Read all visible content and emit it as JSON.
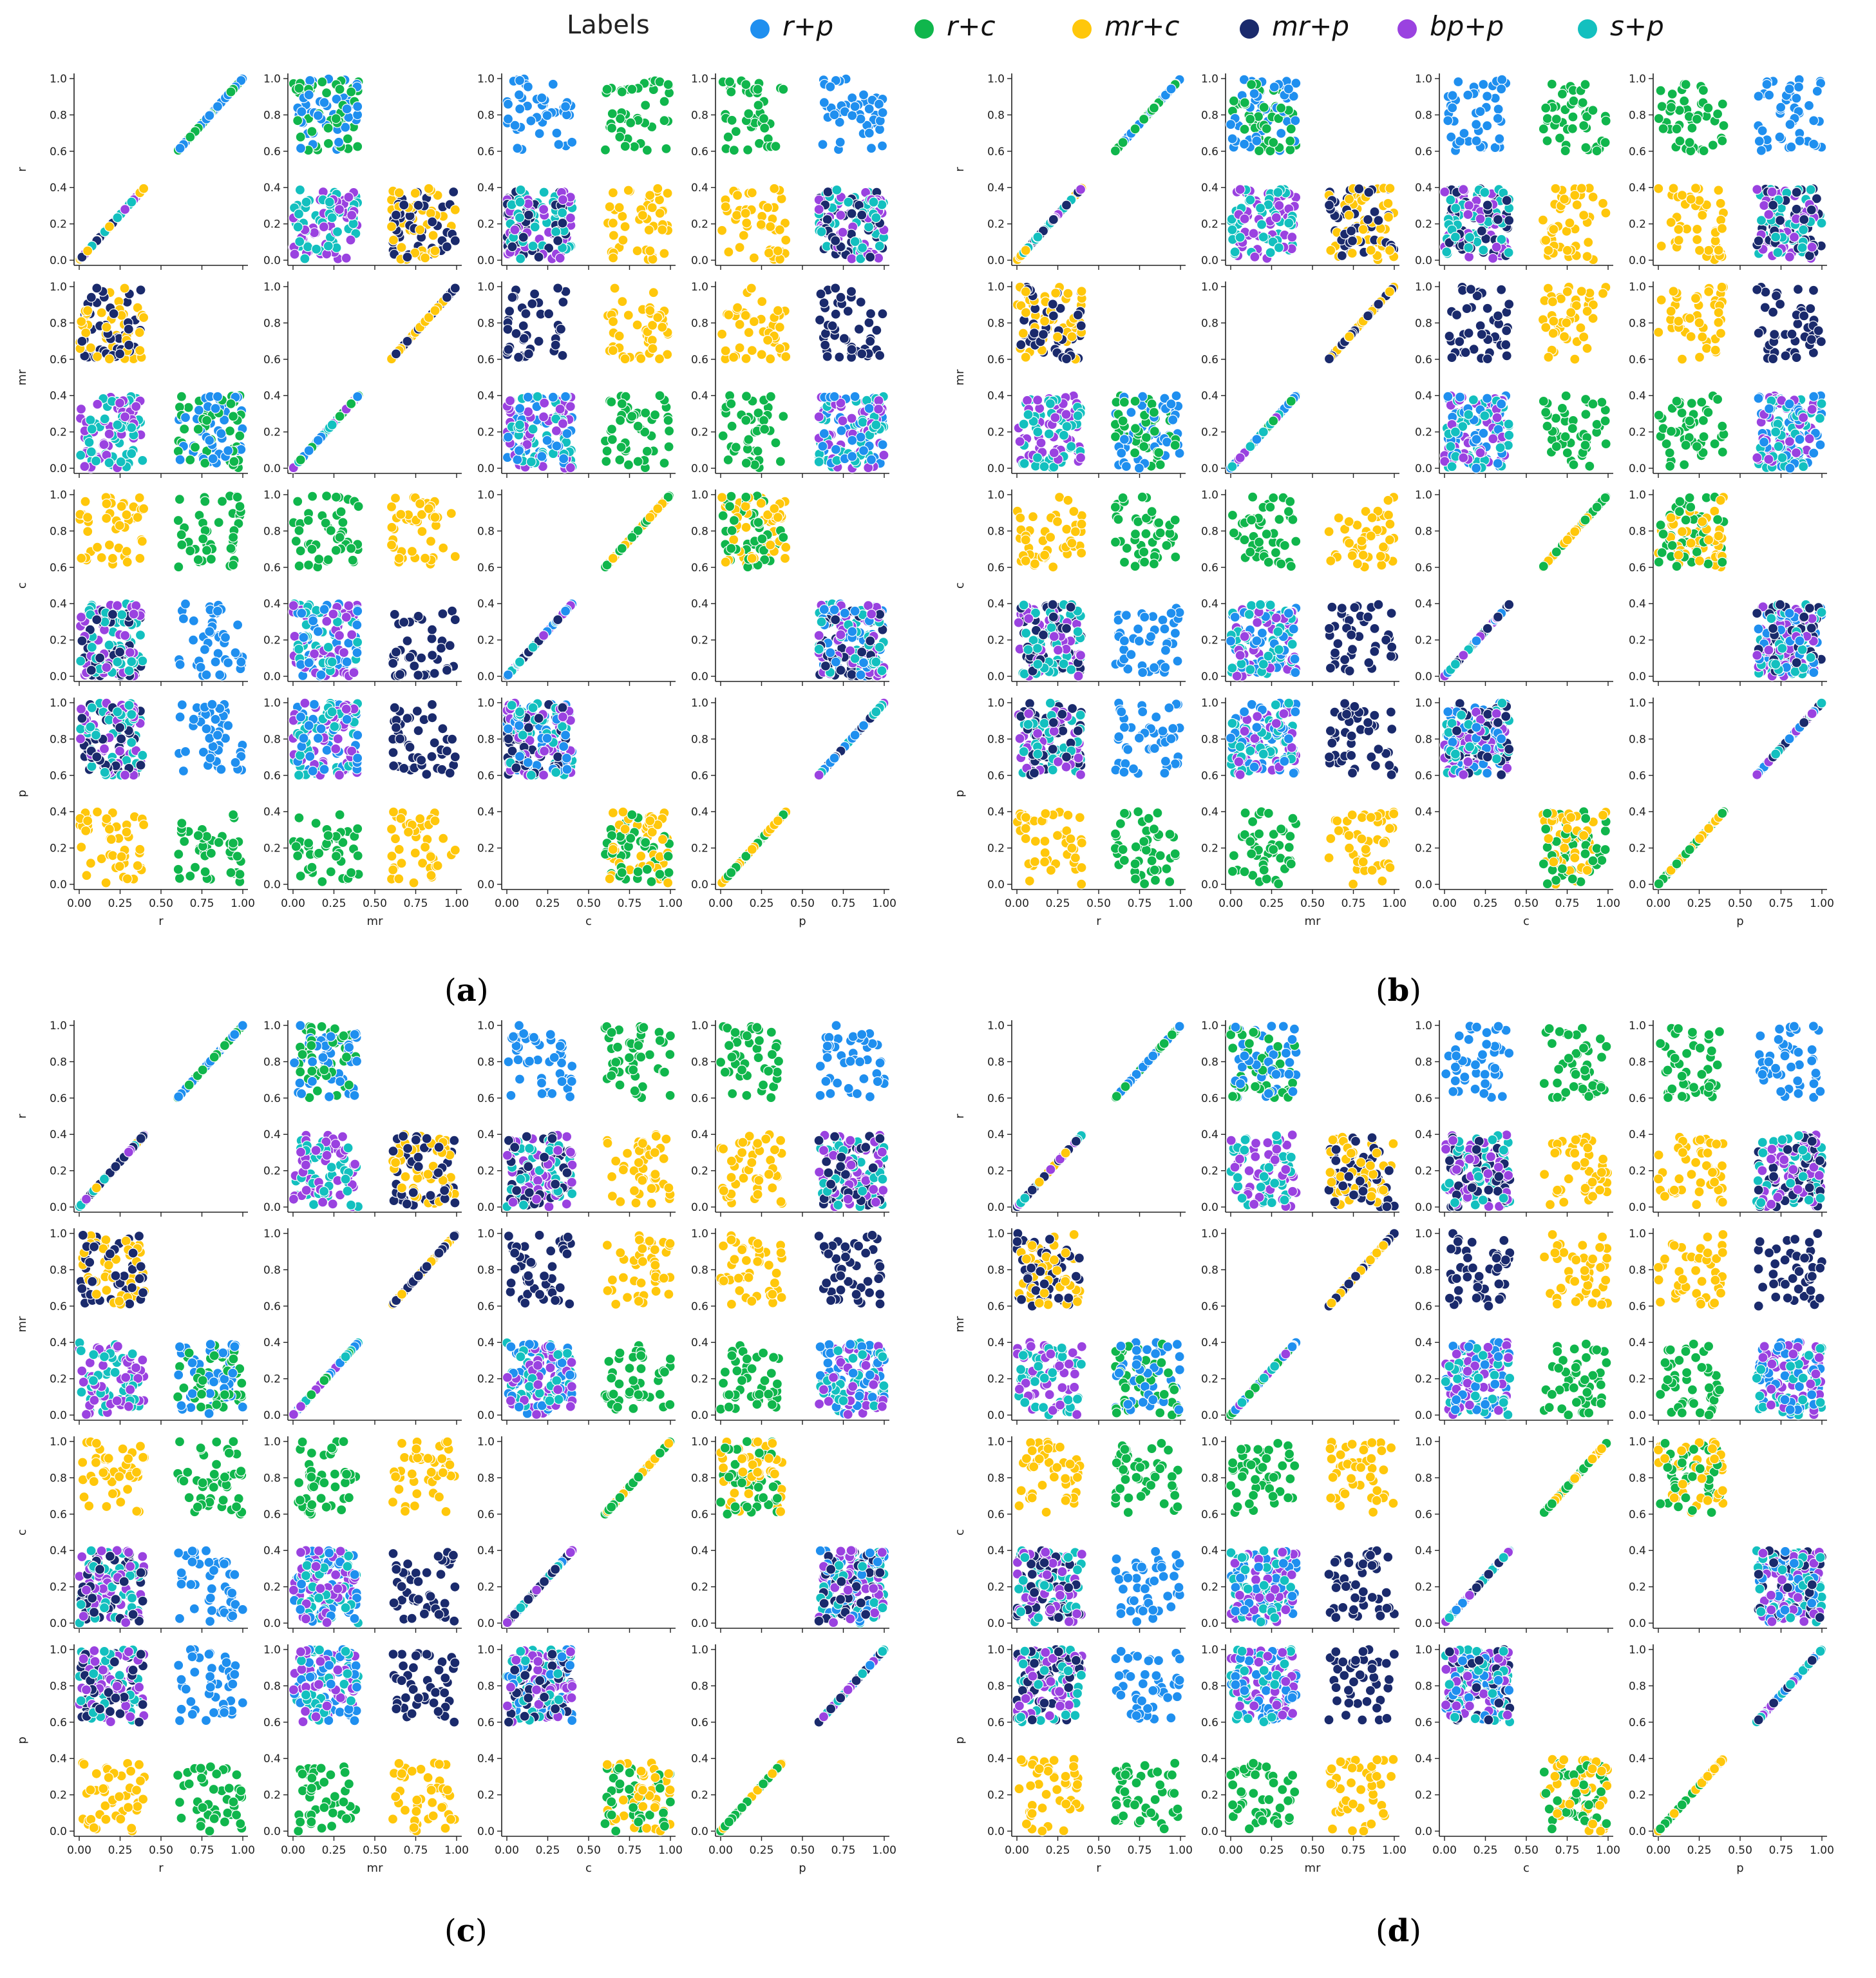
{
  "legend": {
    "title": "Labels",
    "entries": [
      {
        "label": "r+p",
        "color": "#1f8fef"
      },
      {
        "label": "r+c",
        "color": "#10b64c"
      },
      {
        "label": "mr+c",
        "color": "#ffc70b"
      },
      {
        "label": "mr+p",
        "color": "#1a2a6c"
      },
      {
        "label": "bp+p",
        "color": "#9a42e0"
      },
      {
        "label": "s+p",
        "color": "#13c0bf"
      }
    ]
  },
  "panels": [
    {
      "label": "a"
    },
    {
      "label": "b"
    },
    {
      "label": "c"
    },
    {
      "label": "d"
    }
  ],
  "chart_data": {
    "type": "scatter",
    "layout": "pairplot-4x4-per-panel",
    "variables": [
      "r",
      "mr",
      "c",
      "p"
    ],
    "axis_range": [
      0.0,
      1.0
    ],
    "y_ticks": [
      "0.0",
      "0.2",
      "0.4",
      "0.6",
      "0.8",
      "1.0"
    ],
    "x_ticks": [
      "0.00",
      "0.25",
      "0.50",
      "0.75",
      "1.00"
    ],
    "grid": false,
    "legend_position": "top-right",
    "classes": [
      {
        "name": "r+p",
        "color": "#1f8fef",
        "r": [
          0.6,
          1.0
        ],
        "mr": [
          0.0,
          0.4
        ],
        "c": [
          0.0,
          0.4
        ],
        "p": [
          0.6,
          1.0
        ]
      },
      {
        "name": "r+c",
        "color": "#10b64c",
        "r": [
          0.6,
          1.0
        ],
        "mr": [
          0.0,
          0.4
        ],
        "c": [
          0.6,
          1.0
        ],
        "p": [
          0.0,
          0.4
        ]
      },
      {
        "name": "mr+c",
        "color": "#ffc70b",
        "r": [
          0.0,
          0.4
        ],
        "mr": [
          0.6,
          1.0
        ],
        "c": [
          0.6,
          1.0
        ],
        "p": [
          0.0,
          0.4
        ]
      },
      {
        "name": "mr+p",
        "color": "#1a2a6c",
        "r": [
          0.0,
          0.4
        ],
        "mr": [
          0.6,
          1.0
        ],
        "c": [
          0.0,
          0.4
        ],
        "p": [
          0.6,
          1.0
        ]
      },
      {
        "name": "bp+p",
        "color": "#9a42e0",
        "r": [
          0.0,
          0.4
        ],
        "mr": [
          0.0,
          0.4
        ],
        "c": [
          0.0,
          0.4
        ],
        "p": [
          0.6,
          1.0
        ]
      },
      {
        "name": "s+p",
        "color": "#13c0bf",
        "r": [
          0.0,
          0.4
        ],
        "mr": [
          0.0,
          0.4
        ],
        "c": [
          0.0,
          0.4
        ],
        "p": [
          0.6,
          1.0
        ]
      }
    ],
    "points_per_class": 45
  }
}
